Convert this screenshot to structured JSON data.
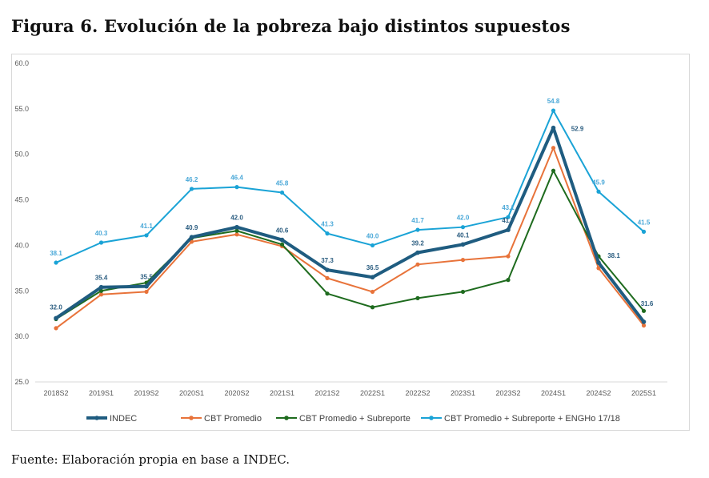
{
  "title": "Figura 6. Evolución de la pobreza bajo distintos supuestos",
  "source": "Fuente: Elaboración propia en base a INDEC.",
  "chart_data": {
    "type": "line",
    "title": "Figura 6. Evolución de la pobreza bajo distintos supuestos",
    "xlabel": "",
    "ylabel": "",
    "ylim": [
      25.0,
      60.0
    ],
    "yticks": [
      "25.0",
      "30.0",
      "35.0",
      "40.0",
      "45.0",
      "50.0",
      "55.0",
      "60.0"
    ],
    "grid": false,
    "legend_position": "bottom",
    "categories": [
      "2018S2",
      "2019S1",
      "2019S2",
      "2020S1",
      "2020S2",
      "2021S1",
      "2021S2",
      "2022S1",
      "2022S2",
      "2023S1",
      "2023S2",
      "2024S1",
      "2024S2",
      "2025S1"
    ],
    "series": [
      {
        "name": "INDEC",
        "color": "#1f5c80",
        "values": [
          32.0,
          35.4,
          35.5,
          40.9,
          42.0,
          40.6,
          37.3,
          36.5,
          39.2,
          40.1,
          41.7,
          52.9,
          38.1,
          31.6
        ],
        "labels": [
          "32.0",
          "35.4",
          "35.5",
          "40.9",
          "42.0",
          "40.6",
          "37.3",
          "36.5",
          "39.2",
          "40.1",
          "41.7",
          "52.9",
          "38.1",
          "31.6"
        ]
      },
      {
        "name": "CBT Promedio",
        "color": "#e8733a",
        "values": [
          30.9,
          34.6,
          34.9,
          40.4,
          41.2,
          39.9,
          36.4,
          34.9,
          37.9,
          38.4,
          38.8,
          50.7,
          37.5,
          31.2
        ]
      },
      {
        "name": "CBT Promedio + Subreporte",
        "color": "#1e6b1e",
        "values": [
          31.9,
          35.0,
          35.9,
          40.8,
          41.6,
          40.1,
          34.7,
          33.2,
          34.2,
          34.9,
          36.2,
          48.2,
          38.8,
          32.8
        ]
      },
      {
        "name": "CBT Promedio + Subreporte + ENGHo 17/18",
        "color": "#1aa3d6",
        "values": [
          38.1,
          40.3,
          41.1,
          46.2,
          46.4,
          45.8,
          41.3,
          40.0,
          41.7,
          42.0,
          43.1,
          54.8,
          45.9,
          41.5
        ],
        "labels": [
          "38.1",
          "40.3",
          "41.1",
          "46.2",
          "46.4",
          "45.8",
          "41.3",
          "40.0",
          "41.7",
          "42.0",
          "43.1",
          "54.8",
          "45.9",
          "41.5"
        ]
      }
    ]
  }
}
